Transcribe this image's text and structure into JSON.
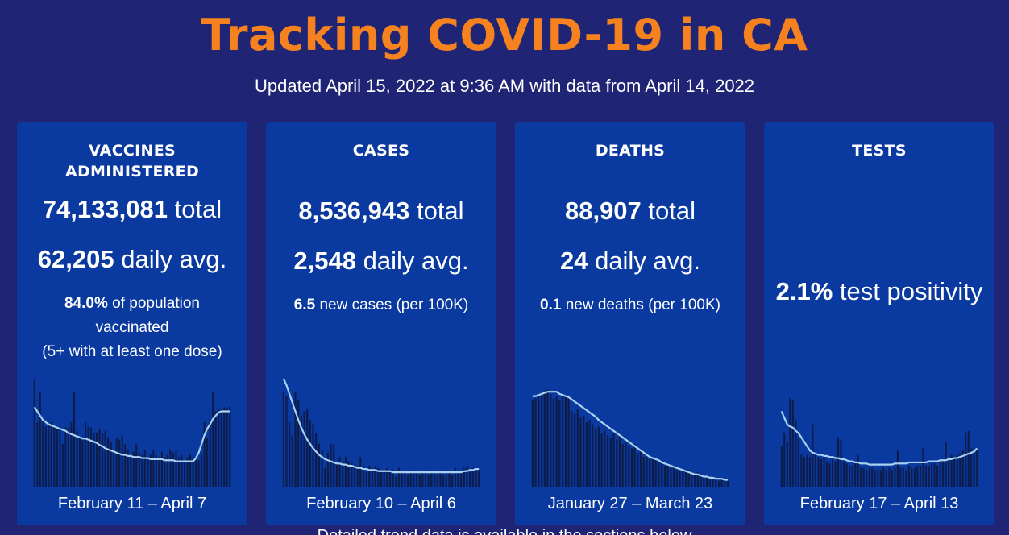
{
  "header": {
    "title": "Tracking COVID-19 in CA",
    "subtitle": "Updated April 15, 2022 at 9:36 AM with data from April 14, 2022"
  },
  "colors": {
    "background": "#1f2574",
    "card": "#0a3aa0",
    "title": "#f5821f",
    "bar": "#0d1c4a",
    "line": "#a9d2f0"
  },
  "cards": [
    {
      "title_line1": "VACCINES",
      "title_line2": "ADMINISTERED",
      "total_value": "74,133,081",
      "total_unit": "total",
      "daily_value": "62,205",
      "daily_unit": "daily avg.",
      "note_value": "84.0%",
      "note_text": "of population",
      "note_line2": "vaccinated",
      "note_line3": "(5+ with at least one dose)",
      "date_range": "February 11 – April 7"
    },
    {
      "title": "CASES",
      "total_value": "8,536,943",
      "total_unit": "total",
      "daily_value": "2,548",
      "daily_unit": "daily avg.",
      "note_value": "6.5",
      "note_text": "new cases (per 100K)",
      "date_range": "February 10 – April 6"
    },
    {
      "title": "DEATHS",
      "total_value": "88,907",
      "total_unit": "total",
      "daily_value": "24",
      "daily_unit": "daily avg.",
      "note_value": "0.1",
      "note_text": "new deaths (per 100K)",
      "date_range": "January 27 – March 23"
    },
    {
      "title": "TESTS",
      "positivity_value": "2.1%",
      "positivity_text": "test positivity",
      "date_range": "February 17 – April 13"
    }
  ],
  "footer": {
    "text": "Detailed trend data is available in the sections below"
  },
  "chart_data": [
    {
      "type": "bar",
      "name": "vaccines",
      "ylim": [
        0,
        100
      ],
      "values": [
        100,
        60,
        88,
        62,
        56,
        58,
        60,
        56,
        55,
        56,
        40,
        55,
        55,
        60,
        88,
        52,
        46,
        44,
        60,
        56,
        55,
        50,
        50,
        54,
        50,
        52,
        46,
        42,
        35,
        45,
        44,
        48,
        40,
        35,
        30,
        33,
        40,
        32,
        30,
        34,
        28,
        30,
        34,
        30,
        28,
        33,
        28,
        30,
        35,
        32,
        34,
        28,
        30,
        24,
        28,
        30,
        28,
        25,
        25,
        30,
        60,
        45,
        62,
        88,
        70,
        73,
        72,
        74,
        73,
        74
      ],
      "trend": [
        74,
        70,
        66,
        62,
        60,
        58,
        57,
        56,
        55,
        54,
        53,
        52,
        50,
        49,
        48,
        47,
        46,
        45,
        45,
        44,
        43,
        42,
        41,
        39,
        38,
        36,
        35,
        34,
        33,
        32,
        31,
        30,
        30,
        29,
        29,
        28,
        28,
        28,
        27,
        27,
        27,
        26,
        26,
        26,
        26,
        26,
        25,
        25,
        25,
        25,
        24,
        24,
        24,
        24,
        24,
        24,
        24,
        27,
        32,
        40,
        48,
        54,
        58,
        63,
        66,
        69,
        70,
        70,
        70,
        70
      ]
    },
    {
      "type": "bar",
      "name": "cases",
      "ylim": [
        0,
        100
      ],
      "values": [
        88,
        84,
        60,
        48,
        88,
        80,
        66,
        70,
        72,
        62,
        58,
        50,
        40,
        35,
        18,
        32,
        40,
        40,
        22,
        28,
        22,
        28,
        24,
        22,
        20,
        18,
        28,
        20,
        14,
        20,
        16,
        20,
        18,
        14,
        14,
        18,
        14,
        16,
        10,
        18,
        14,
        14,
        12,
        16,
        14,
        14,
        12,
        14,
        16,
        12,
        14,
        14,
        12,
        16,
        12,
        12,
        14,
        12,
        18,
        14,
        14,
        18,
        20,
        14,
        18,
        16,
        16
      ],
      "trend": [
        100,
        94,
        86,
        78,
        70,
        62,
        55,
        49,
        44,
        40,
        36,
        33,
        30,
        28,
        26,
        25,
        24,
        23,
        22,
        22,
        21,
        21,
        20,
        20,
        19,
        18,
        18,
        17,
        17,
        16,
        16,
        16,
        15,
        15,
        15,
        15,
        15,
        14,
        14,
        14,
        14,
        14,
        14,
        14,
        14,
        14,
        14,
        14,
        14,
        14,
        14,
        14,
        14,
        14,
        14,
        14,
        14,
        14,
        14,
        14,
        14,
        15,
        15,
        16,
        16,
        17,
        17
      ]
    },
    {
      "type": "bar",
      "name": "deaths",
      "ylim": [
        0,
        100
      ],
      "values": [
        80,
        82,
        86,
        84,
        88,
        90,
        86,
        82,
        84,
        80,
        86,
        84,
        82,
        70,
        68,
        72,
        64,
        66,
        60,
        62,
        58,
        54,
        56,
        50,
        52,
        48,
        46,
        50,
        44,
        48,
        40,
        42,
        38,
        36,
        40,
        32,
        34,
        28,
        30,
        26,
        28,
        26,
        24,
        22,
        20,
        22,
        18,
        20,
        16,
        18,
        16,
        14,
        16,
        14,
        12,
        14,
        10,
        12,
        10,
        8,
        10,
        8,
        6,
        8,
        6,
        6
      ],
      "trend": [
        84,
        84,
        85,
        86,
        87,
        88,
        88,
        88,
        88,
        86,
        85,
        84,
        83,
        81,
        79,
        77,
        75,
        73,
        71,
        69,
        67,
        65,
        62,
        60,
        58,
        56,
        54,
        52,
        50,
        48,
        46,
        44,
        42,
        40,
        38,
        36,
        34,
        32,
        30,
        28,
        27,
        26,
        25,
        23,
        22,
        21,
        20,
        19,
        18,
        17,
        16,
        15,
        14,
        13,
        12,
        12,
        11,
        10,
        10,
        9,
        9,
        8,
        8,
        8,
        7,
        7
      ]
    },
    {
      "type": "bar",
      "name": "tests",
      "ylim": [
        0,
        100
      ],
      "values": [
        38,
        50,
        42,
        82,
        80,
        62,
        46,
        30,
        28,
        30,
        28,
        58,
        30,
        28,
        26,
        28,
        24,
        22,
        26,
        24,
        46,
        44,
        24,
        22,
        20,
        20,
        22,
        30,
        18,
        18,
        16,
        18,
        18,
        16,
        16,
        16,
        18,
        16,
        18,
        16,
        18,
        34,
        18,
        18,
        16,
        20,
        18,
        18,
        20,
        20,
        36,
        20,
        20,
        22,
        22,
        20,
        24,
        26,
        42,
        26,
        30,
        28,
        30,
        30,
        34,
        50,
        52,
        36,
        34,
        34
      ],
      "trend": [
        70,
        64,
        58,
        56,
        55,
        52,
        50,
        46,
        42,
        38,
        34,
        32,
        31,
        30,
        30,
        29,
        29,
        28,
        28,
        27,
        27,
        26,
        26,
        25,
        24,
        24,
        23,
        23,
        22,
        22,
        22,
        21,
        21,
        21,
        21,
        21,
        21,
        21,
        21,
        21,
        22,
        22,
        22,
        22,
        22,
        23,
        23,
        23,
        23,
        23,
        23,
        23,
        24,
        24,
        24,
        24,
        25,
        25,
        25,
        26,
        26,
        27,
        27,
        28,
        29,
        30,
        31,
        32,
        33,
        36
      ]
    }
  ]
}
